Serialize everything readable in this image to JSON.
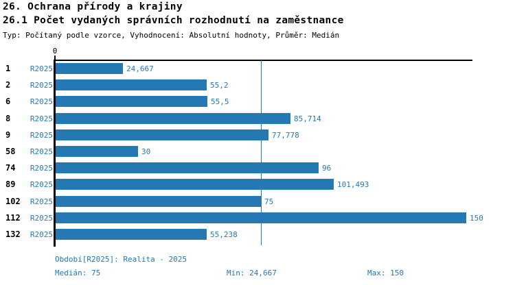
{
  "header": {
    "title1": "26. Ochrana přírody a krajiny",
    "title2": "26.1 Počet vydaných správních rozhodnutí na zaměstnance",
    "meta": "Typ: Počítaný podle vzorce, Vyhodnocení: Absolutní hodnoty, Průměr: Medián"
  },
  "chart_data": {
    "type": "bar",
    "orientation": "horizontal",
    "title": "26.1 Počet vydaných správních rozhodnutí na zaměstnance",
    "series_label": "R2025",
    "categories": [
      "1",
      "2",
      "6",
      "8",
      "9",
      "58",
      "74",
      "89",
      "102",
      "112",
      "132"
    ],
    "values": [
      24.667,
      55.2,
      55.5,
      85.714,
      77.778,
      30,
      96,
      101.493,
      75,
      150,
      55.238
    ],
    "value_labels": [
      "24,667",
      "55,2",
      "55,5",
      "85,714",
      "77,778",
      "30",
      "96",
      "101,493",
      "75",
      "150",
      "55,238"
    ],
    "xlim": [
      0,
      152
    ],
    "zero_tick_label": "0",
    "median_line_value": 75,
    "grid": "off",
    "bar_color": "#2478b4",
    "median_line_color": "#2478b4",
    "axis_color": "#000000"
  },
  "footer": {
    "period_label": "Období[R2025]: Realita - 2025",
    "median_label": "Medián: 75",
    "min_label": "Min: 24,667",
    "max_label": "Max: 150"
  }
}
